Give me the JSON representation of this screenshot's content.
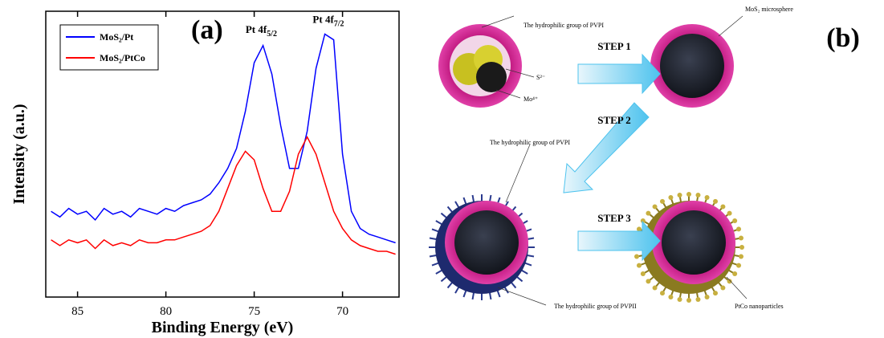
{
  "chart_data": {
    "type": "line",
    "panel_label": "(a)",
    "x_label": "Binding Energy (eV)",
    "y_label": "Intensity (a.u.)",
    "xlim": [
      86.8,
      66.8
    ],
    "xticks": [
      85,
      80,
      75,
      70
    ],
    "ylim": [
      0,
      100
    ],
    "legend": "upper left",
    "annotations": [
      {
        "text": "Pt 4f",
        "sub": "5/2",
        "x": 74.6,
        "y": 88.5
      },
      {
        "text": "Pt 4f",
        "sub": "7/2",
        "x": 70.8,
        "y": 92
      }
    ],
    "x": [
      86.5,
      86,
      85.5,
      85,
      84.5,
      84,
      83.5,
      83,
      82.5,
      82,
      81.5,
      81,
      80.5,
      80,
      79.5,
      79,
      78.5,
      78,
      77.5,
      77,
      76.5,
      76,
      75.5,
      75,
      74.5,
      74,
      73.5,
      73,
      72.5,
      72,
      71.5,
      71,
      70.5,
      70,
      69.5,
      69,
      68.5,
      68,
      67.5,
      67
    ],
    "series": [
      {
        "name": "MoS₂/Pt",
        "color": "#0000ff",
        "values": [
          30,
          28,
          31,
          29,
          30,
          27,
          31,
          29,
          30,
          28,
          31,
          30,
          29,
          31,
          30,
          32,
          33,
          34,
          36,
          40,
          45,
          52,
          65,
          82,
          88,
          78,
          60,
          45,
          45,
          58,
          80,
          92,
          90,
          50,
          30,
          24,
          22,
          21,
          20,
          19
        ]
      },
      {
        "name": "MoS₂/PtCo",
        "color": "#ff0000",
        "values": [
          20,
          18,
          20,
          19,
          20,
          17,
          20,
          18,
          19,
          18,
          20,
          19,
          19,
          20,
          20,
          21,
          22,
          23,
          25,
          30,
          38,
          46,
          51,
          48,
          38,
          30,
          30,
          37,
          50,
          56,
          50,
          40,
          30,
          24,
          20,
          18,
          17,
          16,
          16,
          15
        ]
      }
    ]
  },
  "diagram": {
    "panel_label": "(b)",
    "steps": [
      "STEP 1",
      "STEP 2",
      "STEP 3"
    ],
    "labels": {
      "pvpi_top": "The hydrophilic  group of PVPI",
      "s2": "S²⁻",
      "mo4": "Mo⁴⁺",
      "mos2": "MoS₂ microsphere",
      "pvpi_bottom": "The hydrophilic  group of PVPI",
      "pvpii": "The hydrophilic group of PVPII",
      "ptco": "PtCo nanoparticles"
    }
  }
}
